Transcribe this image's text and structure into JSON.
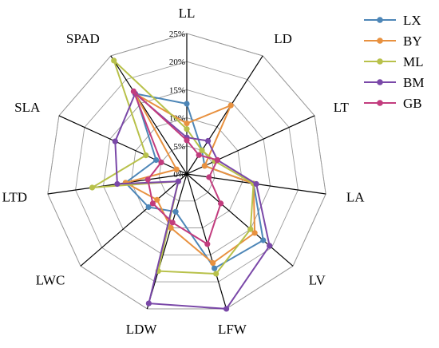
{
  "chart_data": {
    "type": "radar",
    "axes": [
      "LL",
      "LD",
      "LT",
      "LA",
      "LV",
      "LFW",
      "LDW",
      "LWC",
      "LTD",
      "SLA",
      "SPAD"
    ],
    "ticks": [
      "0%",
      "5%",
      "10%",
      "15%",
      "20%",
      "25%"
    ],
    "rmax": 25,
    "grid": true,
    "legend_position": "top-right",
    "series": [
      {
        "name": "LX",
        "color": "#4d86b7",
        "values": [
          12.5,
          5,
          3.5,
          12,
          18,
          17.5,
          7,
          9,
          11,
          6,
          17
        ]
      },
      {
        "name": "BY",
        "color": "#e8913f",
        "values": [
          9,
          14.5,
          3.5,
          12,
          16,
          16.5,
          10,
          7,
          11,
          2,
          17
        ]
      },
      {
        "name": "ML",
        "color": "#b8c14a",
        "values": [
          8,
          5,
          5.5,
          12,
          15,
          18.5,
          18,
          2,
          17,
          8,
          24
        ]
      },
      {
        "name": "BM",
        "color": "#7a48a8",
        "values": [
          6.5,
          7,
          6,
          12.5,
          19.5,
          25,
          24,
          2,
          12.5,
          14,
          17
        ]
      },
      {
        "name": "GB",
        "color": "#c23c7e",
        "values": [
          6,
          4,
          6,
          4,
          8,
          13,
          9,
          8,
          7,
          5,
          17.5
        ]
      }
    ]
  }
}
